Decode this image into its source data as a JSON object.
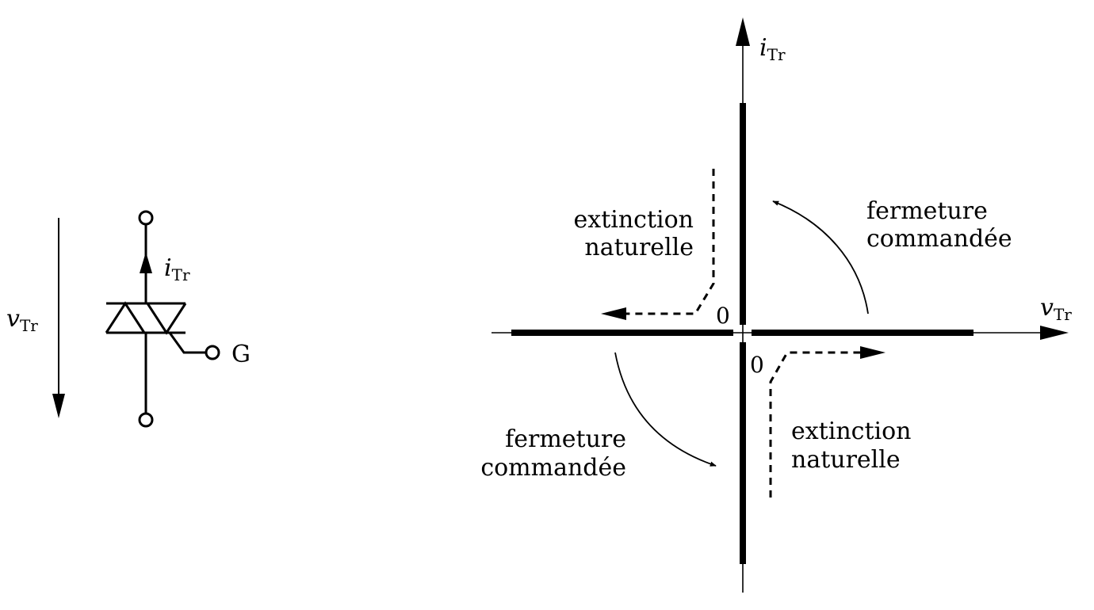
{
  "symbol": {
    "voltage_label": {
      "main": "v",
      "sub": "Tr"
    },
    "current_label": {
      "main": "i",
      "sub": "Tr"
    },
    "gate_label": "G"
  },
  "characteristic": {
    "y_axis_label": {
      "main": "i",
      "sub": "Tr"
    },
    "x_axis_label": {
      "main": "v",
      "sub": "Tr"
    },
    "origin_label_upper": "0",
    "origin_label_lower": "0",
    "quadrant_labels": {
      "top_left": [
        "extinction",
        "naturelle"
      ],
      "top_right": [
        "fermeture",
        "commandée"
      ],
      "bottom_left": [
        "fermeture",
        "commandée"
      ],
      "bottom_right": [
        "extinction",
        "naturelle"
      ]
    }
  }
}
